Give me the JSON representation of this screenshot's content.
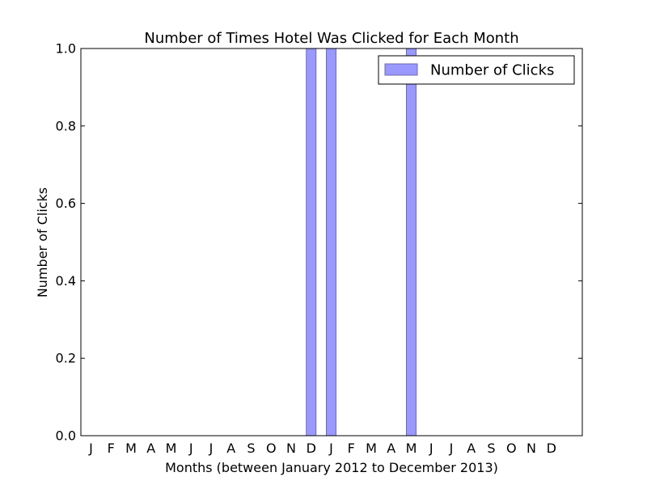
{
  "chart_data": {
    "type": "bar",
    "title": "Number of Times Hotel Was Clicked for Each Month",
    "xlabel": "Months (between January 2012 to December 2013)",
    "ylabel": "Number of Clicks",
    "categories": [
      "J",
      "F",
      "M",
      "A",
      "M",
      "J",
      "J",
      "A",
      "S",
      "O",
      "N",
      "D",
      "J",
      "F",
      "M",
      "A",
      "M",
      "J",
      "J",
      "A",
      "S",
      "O",
      "N",
      "D"
    ],
    "series": [
      {
        "name": "Number of Clicks",
        "values": [
          0,
          0,
          0,
          0,
          0,
          0,
          0,
          0,
          0,
          0,
          0,
          1,
          1,
          0,
          0,
          0,
          1,
          0,
          0,
          0,
          0,
          0,
          0,
          0
        ]
      }
    ],
    "ylim": [
      0,
      1.0
    ],
    "yticks": [
      "0.0",
      "0.2",
      "0.4",
      "0.6",
      "0.8",
      "1.0"
    ],
    "grid": false,
    "legend": "top-right",
    "bar_color": "#9999ff",
    "bar_edge_color": "#6b6bb3"
  }
}
